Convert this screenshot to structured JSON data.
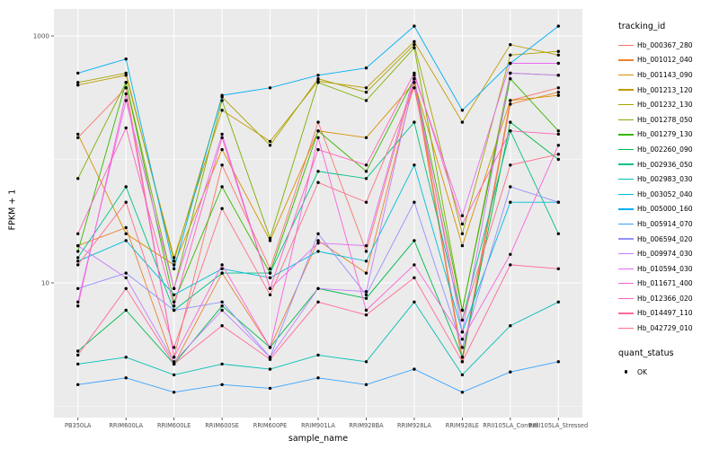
{
  "figure": {
    "legend": {
      "tracking_title": "tracking_id",
      "quant_title": "quant_status",
      "quant_items": [
        {
          "label": "OK"
        }
      ]
    },
    "colors": {
      "panel_bg": "#EBEBEB",
      "grid": "#FFFFFF",
      "tick": "#333333",
      "axis_text": "#4D4D4D",
      "point": "#000000"
    }
  },
  "chart_data": {
    "type": "line",
    "title": "",
    "xlabel": "sample_name",
    "ylabel": "FPKM + 1",
    "y_scale": "log10",
    "ylim": [
      1,
      1300
    ],
    "y_ticks": [
      1000,
      10
    ],
    "y_gridlines_major": [
      10,
      1000
    ],
    "y_gridlines_minor": [
      1,
      100
    ],
    "grid": true,
    "legend_position": "right",
    "categories": [
      "PB350LA",
      "RRIM600LA",
      "RRIM600LE",
      "RRIM600SE",
      "RRIM600PE",
      "RRIM901LA",
      "RRIM928BA",
      "RRIM928LA",
      "RRIM928LE",
      "RRII105LA_Control",
      "RRII105LA_Stressed"
    ],
    "series": [
      {
        "name": "Hb_000367_280",
        "color": "#F8766D",
        "values": [
          150,
          380,
          2.5,
          90,
          13,
          200,
          18,
          450,
          2.5,
          300,
          380
        ]
      },
      {
        "name": "Hb_001012_040",
        "color": "#EA8331",
        "values": [
          20,
          28,
          2.2,
          12,
          3,
          22,
          12,
          420,
          2.3,
          280,
          350
        ]
      },
      {
        "name": "Hb_001143_090",
        "color": "#D89000",
        "values": [
          160,
          25,
          14,
          120,
          22,
          170,
          150,
          420,
          20,
          300,
          330
        ]
      },
      {
        "name": "Hb_001213_120",
        "color": "#C09B00",
        "values": [
          400,
          480,
          16,
          250,
          140,
          430,
          380,
          900,
          200,
          850,
          700
        ]
      },
      {
        "name": "Hb_001232_130",
        "color": "#A3A500",
        "values": [
          420,
          500,
          15,
          320,
          130,
          450,
          350,
          850,
          25,
          700,
          750
        ]
      },
      {
        "name": "Hb_001278_050",
        "color": "#7CAE00",
        "values": [
          70,
          420,
          9,
          300,
          23,
          420,
          300,
          800,
          6,
          500,
          480
        ]
      },
      {
        "name": "Hb_001279_130",
        "color": "#39B600",
        "values": [
          18,
          420,
          7,
          60,
          12,
          170,
          80,
          450,
          6,
          450,
          170
        ]
      },
      {
        "name": "Hb_002260_090",
        "color": "#00BB4E",
        "values": [
          2.8,
          6,
          2.2,
          6.5,
          3,
          9,
          7.5,
          22,
          2.5,
          200,
          100
        ]
      },
      {
        "name": "Hb_002936_050",
        "color": "#00C087",
        "values": [
          16,
          60,
          6,
          12,
          12,
          80,
          70,
          200,
          5,
          170,
          25
        ]
      },
      {
        "name": "Hb_002983_030",
        "color": "#00C0B4",
        "values": [
          2.2,
          2.5,
          1.8,
          2.2,
          2,
          2.6,
          2.3,
          7,
          1.8,
          4.5,
          7
        ]
      },
      {
        "name": "Hb_003052_040",
        "color": "#00BCD8",
        "values": [
          15,
          22,
          8,
          13,
          11,
          18,
          15,
          90,
          4,
          45,
          45
        ]
      },
      {
        "name": "Hb_005000_160",
        "color": "#00B0F6",
        "values": [
          500,
          650,
          13,
          330,
          380,
          480,
          550,
          1200,
          250,
          600,
          1200
        ]
      },
      {
        "name": "Hb_005914_070",
        "color": "#35A2FF",
        "values": [
          1.5,
          1.7,
          1.3,
          1.5,
          1.4,
          1.7,
          1.5,
          2,
          1.3,
          1.9,
          2.3
        ]
      },
      {
        "name": "Hb_006594_020",
        "color": "#9590FF",
        "values": [
          9,
          12,
          6,
          7,
          2.5,
          25,
          8,
          45,
          3,
          60,
          45
        ]
      },
      {
        "name": "Hb_009974_030",
        "color": "#C77CFF",
        "values": [
          20,
          11,
          2.3,
          6,
          2.5,
          9,
          8.5,
          450,
          4,
          500,
          480
        ]
      },
      {
        "name": "Hb_010594_030",
        "color": "#E76BF3",
        "values": [
          7,
          300,
          9,
          160,
          9,
          21,
          20,
          480,
          35,
          600,
          600
        ]
      },
      {
        "name": "Hb_011671_400",
        "color": "#FA62DB",
        "values": [
          6.5,
          340,
          2.5,
          14,
          3,
          150,
          6,
          14,
          3.5,
          17,
          130
        ]
      },
      {
        "name": "Hb_012366_020",
        "color": "#FF62BC",
        "values": [
          25,
          180,
          6.5,
          150,
          9,
          120,
          90,
          500,
          30,
          170,
          160
        ]
      },
      {
        "name": "Hb_014497_110",
        "color": "#FF6A98",
        "values": [
          2.6,
          9,
          2.2,
          4.5,
          2.4,
          7,
          5.5,
          11,
          2.3,
          14,
          13
        ]
      },
      {
        "name": "Hb_042729_010",
        "color": "#FD6F88",
        "values": [
          14,
          45,
          3,
          40,
          8,
          65,
          45,
          380,
          5,
          90,
          110
        ]
      }
    ]
  }
}
